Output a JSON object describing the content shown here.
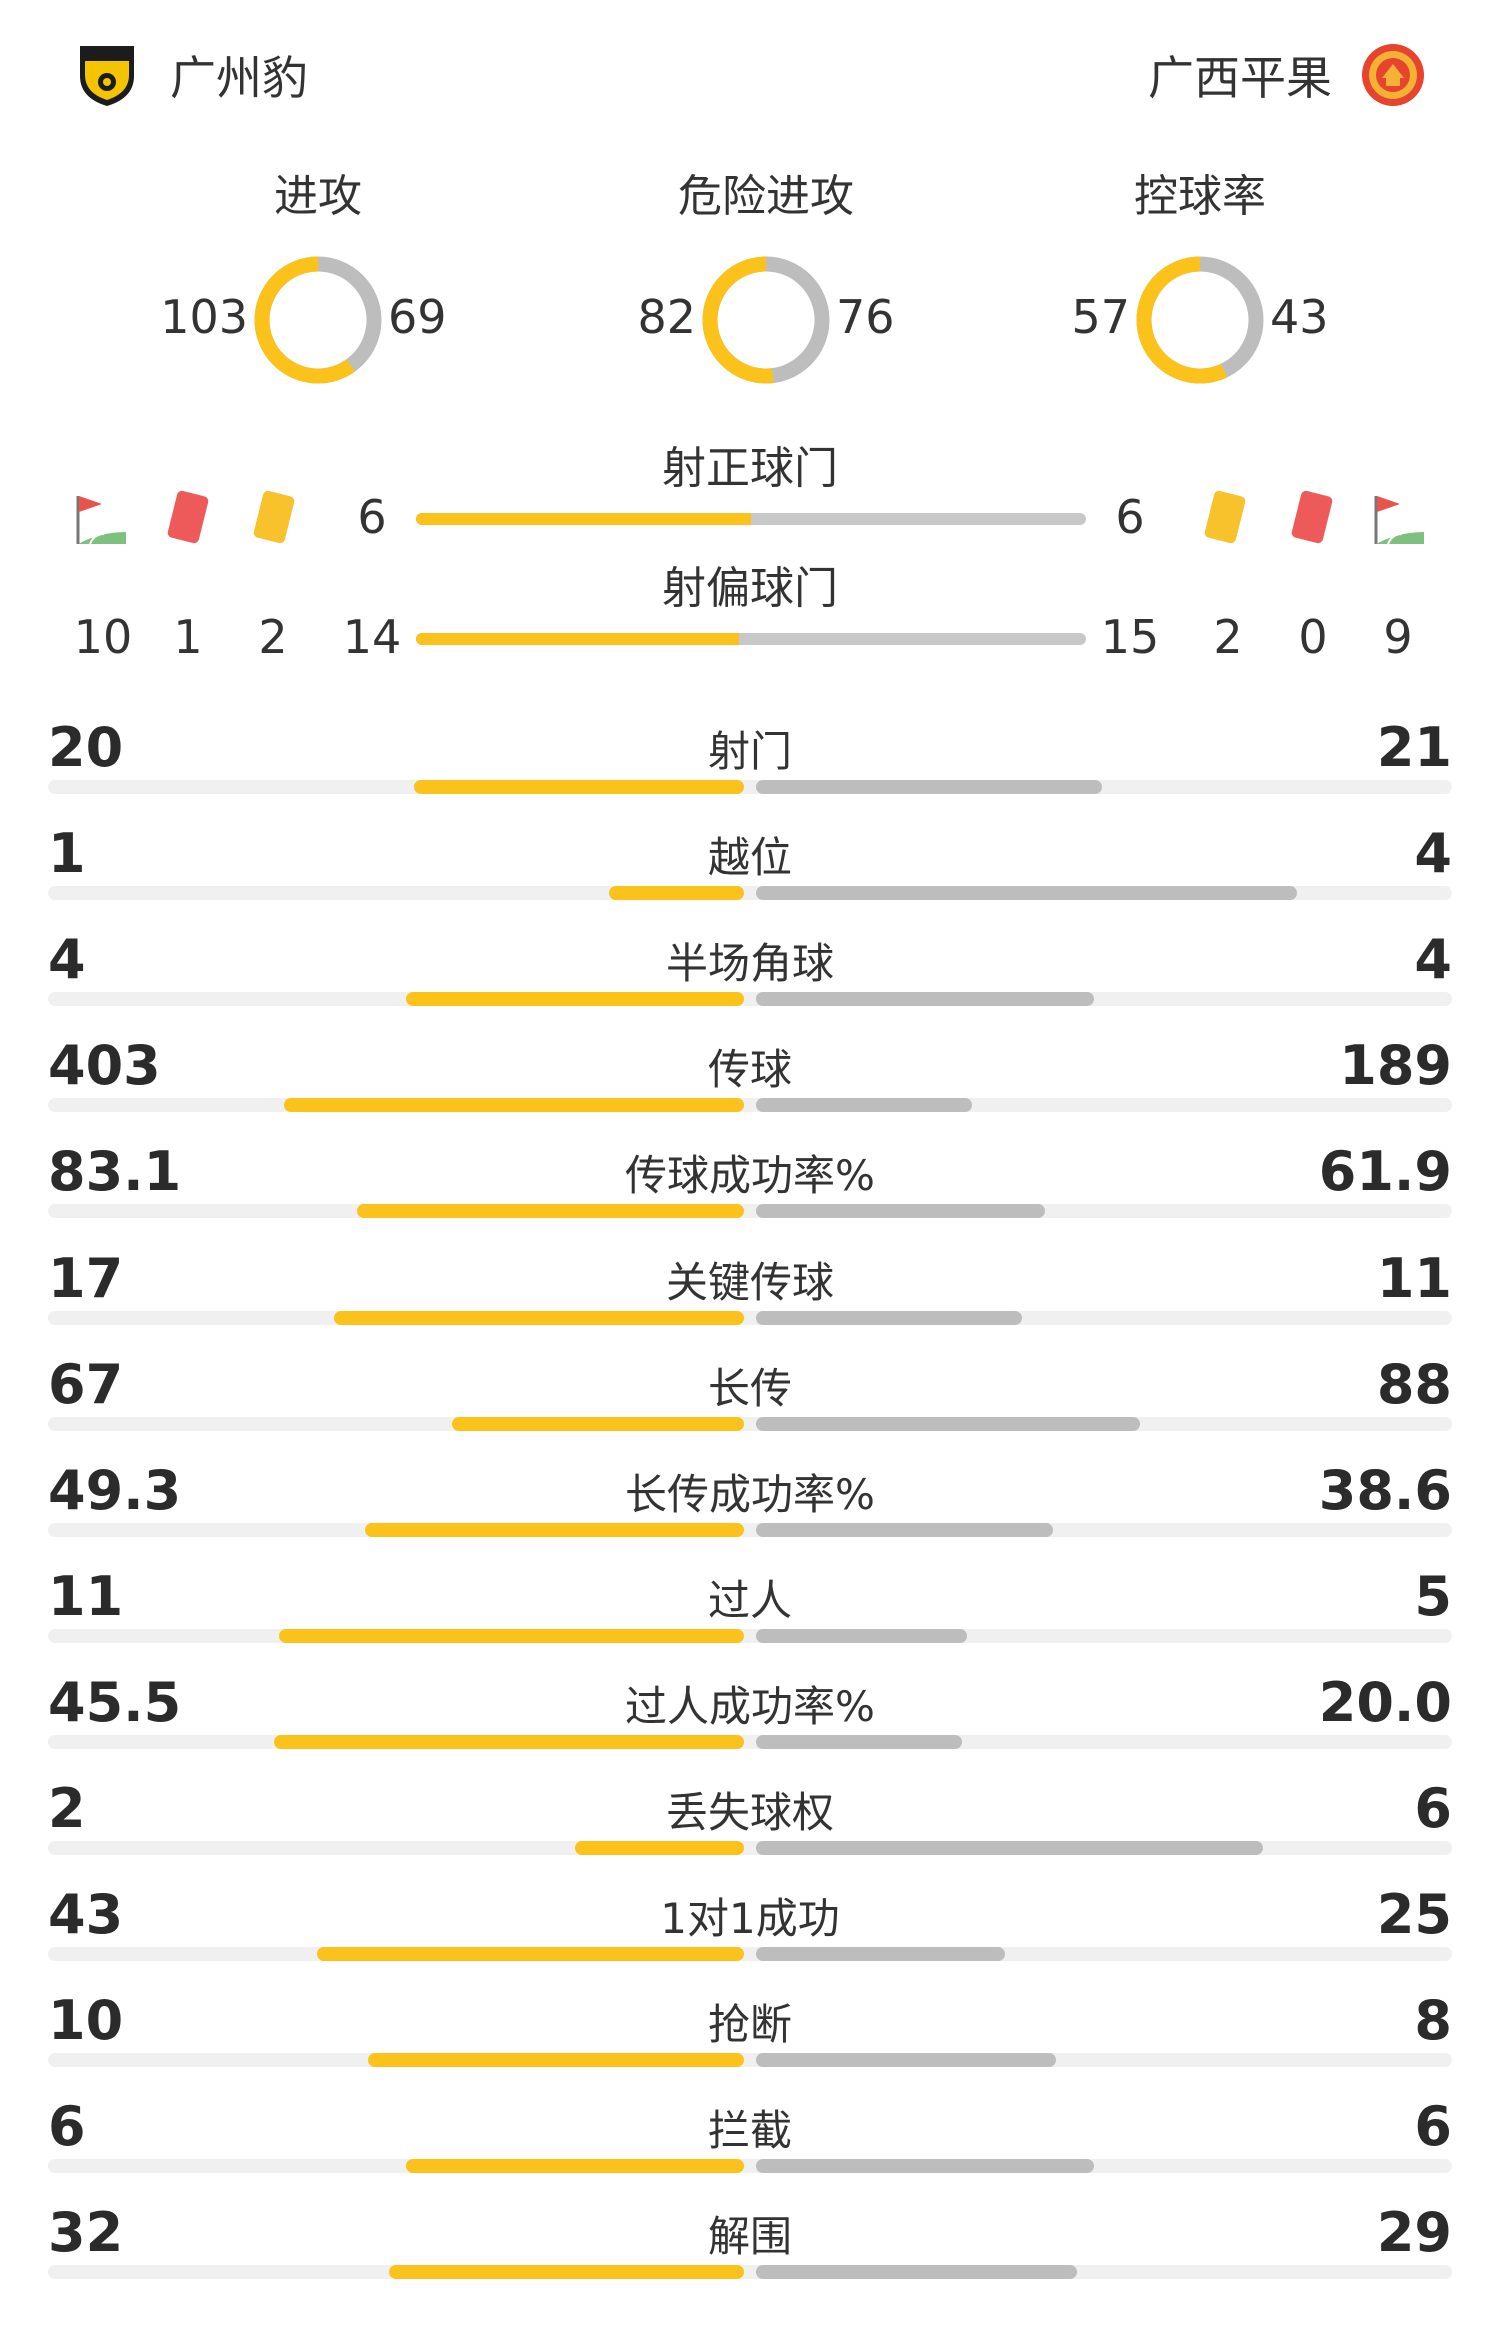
{
  "header": {
    "home": {
      "name": "广州豹",
      "logo_icon": "guangzhou-leopard-shield-logo"
    },
    "away": {
      "name": "广西平果",
      "logo_icon": "guangxi-pingguo-round-logo"
    }
  },
  "colors": {
    "home": "#fbc21b",
    "away": "#bdbdbd",
    "track": "#f0f0f0"
  },
  "donuts": [
    {
      "title": "进攻",
      "home": "103",
      "away": "69",
      "home_n": 103,
      "away_n": 69
    },
    {
      "title": "危险进攻",
      "home": "82",
      "away": "76",
      "home_n": 82,
      "away_n": 76
    },
    {
      "title": "控球率",
      "home": "57",
      "away": "43",
      "home_n": 57,
      "away_n": 43
    }
  ],
  "shots_on": {
    "title": "射正球门",
    "home": "6",
    "away": "6",
    "home_n": 6,
    "away_n": 6
  },
  "shots_off": {
    "title": "射偏球门",
    "home": "14",
    "away": "15",
    "home_n": 14,
    "away_n": 15
  },
  "cards": {
    "home": {
      "corners": "10",
      "red": "1",
      "yellow": "2"
    },
    "away": {
      "yellow": "2",
      "red": "0",
      "corners": "9"
    },
    "icons": {
      "corner": "corner-flag-icon",
      "red": "red-card-icon",
      "yellow": "yellow-card-icon"
    }
  },
  "stats": [
    {
      "label": "射门",
      "home": "20",
      "away": "21",
      "home_n": 20,
      "away_n": 21
    },
    {
      "label": "越位",
      "home": "1",
      "away": "4",
      "home_n": 1,
      "away_n": 4
    },
    {
      "label": "半场角球",
      "home": "4",
      "away": "4",
      "home_n": 4,
      "away_n": 4
    },
    {
      "label": "传球",
      "home": "403",
      "away": "189",
      "home_n": 403,
      "away_n": 189
    },
    {
      "label": "传球成功率%",
      "home": "83.1",
      "away": "61.9",
      "home_n": 83.1,
      "away_n": 61.9
    },
    {
      "label": "关键传球",
      "home": "17",
      "away": "11",
      "home_n": 17,
      "away_n": 11
    },
    {
      "label": "长传",
      "home": "67",
      "away": "88",
      "home_n": 67,
      "away_n": 88
    },
    {
      "label": "长传成功率%",
      "home": "49.3",
      "away": "38.6",
      "home_n": 49.3,
      "away_n": 38.6
    },
    {
      "label": "过人",
      "home": "11",
      "away": "5",
      "home_n": 11,
      "away_n": 5
    },
    {
      "label": "过人成功率%",
      "home": "45.5",
      "away": "20.0",
      "home_n": 45.5,
      "away_n": 20.0
    },
    {
      "label": "丢失球权",
      "home": "2",
      "away": "6",
      "home_n": 2,
      "away_n": 6
    },
    {
      "label": "1对1成功",
      "home": "43",
      "away": "25",
      "home_n": 43,
      "away_n": 25
    },
    {
      "label": "抢断",
      "home": "10",
      "away": "8",
      "home_n": 10,
      "away_n": 8
    },
    {
      "label": "拦截",
      "home": "6",
      "away": "6",
      "home_n": 6,
      "away_n": 6
    },
    {
      "label": "解围",
      "home": "32",
      "away": "29",
      "home_n": 32,
      "away_n": 29
    }
  ]
}
